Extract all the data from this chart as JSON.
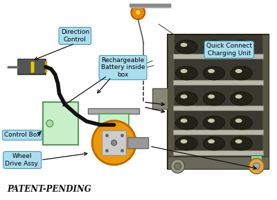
{
  "bg_color": "#ffffff",
  "patent_text": "PATENT-PENDING",
  "labels": {
    "direction_control": "Direction\nControl",
    "rechargeable_battery": "Rechargeable\nBattery inside\nbox",
    "control_box": "Control Box",
    "wheel_drive": "Wheel\nDrive Assy.",
    "quick_connect": "Quick Connect\nCharging Unit"
  },
  "label_bg": "#aaddee",
  "label_edge": "#4499aa",
  "arrow_color": "#111111"
}
